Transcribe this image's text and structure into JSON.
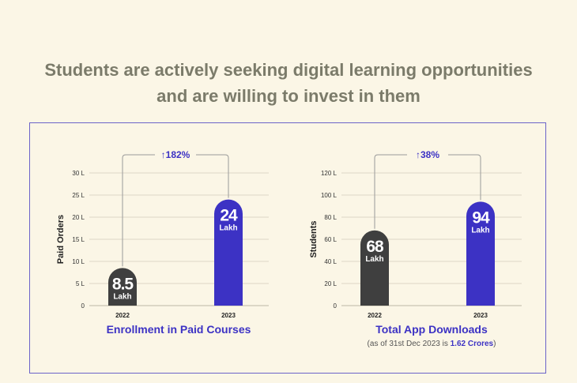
{
  "headline": {
    "line1": "Students are actively seeking digital learning opportunities",
    "line2": "and are willing to invest in them"
  },
  "colors": {
    "background": "#fbf6e6",
    "bar_2022": "#3f3f3f",
    "bar_2023": "#3c32c4",
    "accent_text": "#3c32c4",
    "border": "#6b63c9",
    "headline": "#7b7b6a"
  },
  "chart_data": [
    {
      "type": "bar",
      "title": "Enrollment in Paid Courses",
      "subtitle": "",
      "ylabel": "Paid Orders",
      "categories": [
        "2022",
        "2023"
      ],
      "values": [
        8.5,
        24
      ],
      "value_labels": [
        "8.5",
        "24"
      ],
      "unit_label": "Lakh",
      "yticks": [
        "0",
        "5 L",
        "10 L",
        "15 L",
        "20 L",
        "25 L",
        "30 L"
      ],
      "ylim": [
        0,
        30
      ],
      "growth_label": "182%",
      "growth_arrow": "↑",
      "grid": true,
      "legend": "none"
    },
    {
      "type": "bar",
      "title": "Total App Downloads",
      "subtitle_parts": [
        "(as of 31st Dec 2023 is ",
        "1.62 Crores",
        ")"
      ],
      "ylabel": "Students",
      "categories": [
        "2022",
        "2023"
      ],
      "values": [
        68,
        94
      ],
      "value_labels": [
        "68",
        "94"
      ],
      "unit_label": "Lakh",
      "yticks": [
        "0",
        "20 L",
        "40 L",
        "60 L",
        "80 L",
        "100 L",
        "120 L"
      ],
      "ylim": [
        0,
        120
      ],
      "growth_label": "38%",
      "growth_arrow": "↑",
      "grid": true,
      "legend": "none"
    }
  ]
}
